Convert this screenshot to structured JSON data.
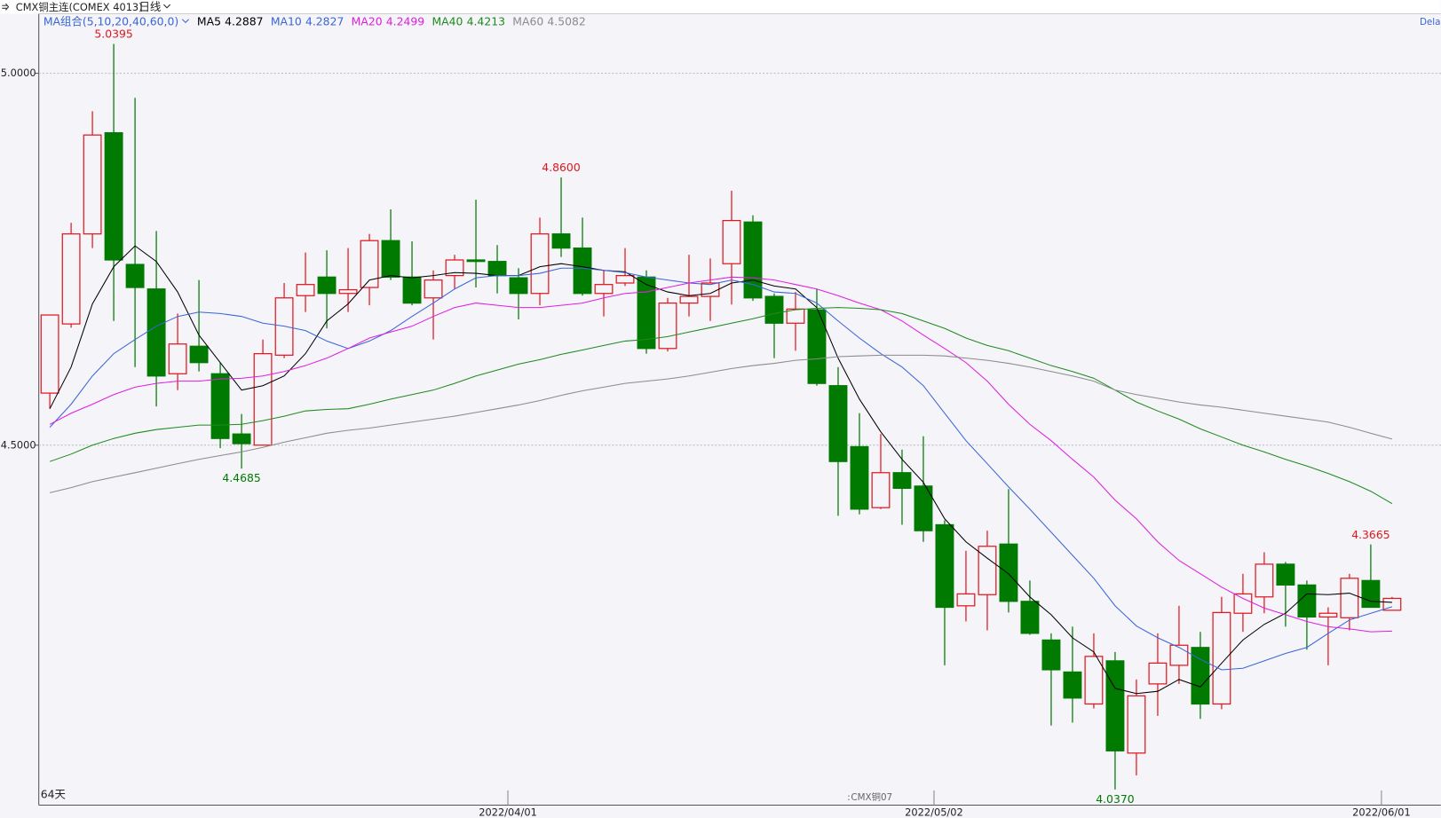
{
  "chart_data": {
    "type": "candlestick",
    "title": "CMX铜主连(COMEX 4013)",
    "period": "日线",
    "ma_group": "MA组合(5,10,20,40,60,0)",
    "day_count": "64天",
    "watermark": "CMX铜07",
    "corner_text": "Dela",
    "categories": [
      null,
      null,
      null,
      null,
      null,
      null,
      null,
      null,
      null,
      null,
      null,
      null,
      null,
      null,
      null,
      null,
      null,
      null,
      null,
      null,
      null,
      null,
      "2022/04/01",
      null,
      null,
      null,
      null,
      null,
      null,
      null,
      null,
      null,
      null,
      null,
      null,
      null,
      null,
      null,
      null,
      null,
      null,
      null,
      "2022/05/02",
      null,
      null,
      null,
      null,
      null,
      null,
      null,
      null,
      null,
      null,
      null,
      null,
      null,
      null,
      null,
      null,
      null,
      null,
      null,
      null,
      "2022/06/01"
    ],
    "open": [
      4.57,
      4.663,
      4.784,
      4.92,
      4.743,
      4.71,
      4.596,
      4.633,
      4.596,
      4.515,
      4.5,
      4.621,
      4.701,
      4.726,
      4.704,
      4.712,
      4.775,
      4.726,
      4.698,
      4.728,
      4.749,
      4.747,
      4.725,
      4.704,
      4.784,
      4.765,
      4.704,
      4.718,
      4.726,
      4.63,
      4.691,
      4.7,
      4.744,
      4.8,
      4.7,
      4.664,
      4.682,
      4.58,
      4.498,
      4.416,
      4.463,
      4.445,
      4.393,
      4.284,
      4.299,
      4.367,
      4.29,
      4.238,
      4.195,
      4.152,
      4.21,
      4.086,
      4.179,
      4.204,
      4.228,
      4.152,
      4.274,
      4.296,
      4.34,
      4.312,
      4.269,
      4.268,
      4.318,
      4.278
    ],
    "high": [
      4.675,
      4.799,
      4.949,
      5.0395,
      4.967,
      4.788,
      4.677,
      4.722,
      4.611,
      4.542,
      4.642,
      4.718,
      4.759,
      4.762,
      4.765,
      4.784,
      4.817,
      4.774,
      4.735,
      4.756,
      4.83,
      4.769,
      4.738,
      4.806,
      4.86,
      4.806,
      4.735,
      4.765,
      4.735,
      4.698,
      4.756,
      4.751,
      4.842,
      4.809,
      4.704,
      4.706,
      4.71,
      4.605,
      4.543,
      4.515,
      4.494,
      4.512,
      4.399,
      4.358,
      4.385,
      4.441,
      4.318,
      4.247,
      4.256,
      4.247,
      4.222,
      4.185,
      4.247,
      4.284,
      4.249,
      4.296,
      4.327,
      4.356,
      4.343,
      4.318,
      4.282,
      4.327,
      4.3665,
      4.296
    ],
    "low": [
      4.549,
      4.658,
      4.765,
      4.667,
      4.605,
      4.552,
      4.574,
      4.599,
      4.496,
      4.4685,
      4.5,
      4.617,
      4.679,
      4.657,
      4.679,
      4.688,
      4.722,
      4.688,
      4.642,
      4.71,
      4.712,
      4.704,
      4.669,
      4.688,
      4.753,
      4.701,
      4.673,
      4.714,
      4.623,
      4.626,
      4.673,
      4.667,
      4.689,
      4.694,
      4.617,
      4.627,
      4.58,
      4.405,
      4.407,
      4.414,
      4.393,
      4.37,
      4.204,
      4.263,
      4.251,
      4.275,
      4.245,
      4.123,
      4.127,
      4.146,
      4.037,
      4.056,
      4.136,
      4.179,
      4.132,
      4.145,
      4.249,
      4.274,
      4.256,
      4.225,
      4.204,
      4.251,
      4.282,
      4.278
    ],
    "close": [
      4.675,
      4.784,
      4.917,
      4.749,
      4.712,
      4.593,
      4.636,
      4.611,
      4.509,
      4.502,
      4.623,
      4.698,
      4.716,
      4.704,
      4.709,
      4.775,
      4.726,
      4.691,
      4.722,
      4.749,
      4.747,
      4.728,
      4.704,
      4.784,
      4.765,
      4.704,
      4.716,
      4.728,
      4.63,
      4.691,
      4.7,
      4.718,
      4.802,
      4.698,
      4.664,
      4.683,
      4.583,
      4.478,
      4.414,
      4.463,
      4.442,
      4.385,
      4.282,
      4.3,
      4.364,
      4.29,
      4.247,
      4.198,
      4.16,
      4.216,
      4.089,
      4.163,
      4.207,
      4.231,
      4.152,
      4.275,
      4.3,
      4.34,
      4.312,
      4.269,
      4.274,
      4.321,
      4.282,
      4.294
    ],
    "up_color": "#e3161e",
    "down_color": "#007a00",
    "series": [
      {
        "name": "MA5",
        "color": "#000000",
        "values": [
          4.549,
          4.605,
          4.69,
          4.74,
          4.768,
          4.747,
          4.706,
          4.648,
          4.611,
          4.574,
          4.58,
          4.593,
          4.623,
          4.667,
          4.69,
          4.722,
          4.728,
          4.725,
          4.728,
          4.732,
          4.731,
          4.728,
          4.728,
          4.74,
          4.744,
          4.74,
          4.735,
          4.733,
          4.716,
          4.706,
          4.701,
          4.704,
          4.718,
          4.722,
          4.714,
          4.71,
          4.685,
          4.617,
          4.562,
          4.518,
          4.481,
          4.45,
          4.401,
          4.37,
          4.348,
          4.327,
          4.296,
          4.272,
          4.241,
          4.222,
          4.173,
          4.166,
          4.169,
          4.185,
          4.175,
          4.207,
          4.238,
          4.259,
          4.274,
          4.3,
          4.299,
          4.301,
          4.29,
          4.2887
        ]
      },
      {
        "name": "MA10",
        "color": "#3a66d6",
        "values": [
          4.524,
          4.555,
          4.593,
          4.623,
          4.642,
          4.66,
          4.673,
          4.679,
          4.677,
          4.673,
          4.664,
          4.66,
          4.654,
          4.64,
          4.63,
          4.64,
          4.654,
          4.673,
          4.691,
          4.71,
          4.725,
          4.728,
          4.728,
          4.731,
          4.738,
          4.738,
          4.735,
          4.732,
          4.726,
          4.722,
          4.718,
          4.716,
          4.722,
          4.716,
          4.706,
          4.704,
          4.691,
          4.667,
          4.644,
          4.623,
          4.605,
          4.58,
          4.543,
          4.506,
          4.475,
          4.444,
          4.414,
          4.383,
          4.352,
          4.321,
          4.284,
          4.257,
          4.241,
          4.228,
          4.212,
          4.198,
          4.2,
          4.21,
          4.22,
          4.228,
          4.247,
          4.265,
          4.274,
          4.2827
        ]
      },
      {
        "name": "MA20",
        "color": "#e01ee0",
        "values": [
          4.528,
          4.543,
          4.555,
          4.568,
          4.578,
          4.583,
          4.586,
          4.586,
          4.589,
          4.59,
          4.593,
          4.599,
          4.607,
          4.617,
          4.63,
          4.644,
          4.652,
          4.66,
          4.673,
          4.685,
          4.691,
          4.688,
          4.685,
          4.685,
          4.688,
          4.691,
          4.698,
          4.704,
          4.706,
          4.712,
          4.718,
          4.722,
          4.726,
          4.725,
          4.722,
          4.716,
          4.71,
          4.701,
          4.691,
          4.682,
          4.667,
          4.648,
          4.63,
          4.611,
          4.586,
          4.555,
          4.528,
          4.506,
          4.481,
          4.457,
          4.426,
          4.401,
          4.37,
          4.345,
          4.327,
          4.309,
          4.294,
          4.281,
          4.272,
          4.263,
          4.256,
          4.253,
          4.249,
          4.2499
        ]
      },
      {
        "name": "MA40",
        "color": "#1f8a1f",
        "values": [
          4.478,
          4.488,
          4.5,
          4.509,
          4.516,
          4.521,
          4.524,
          4.527,
          4.527,
          4.528,
          4.533,
          4.539,
          4.546,
          4.548,
          4.549,
          4.555,
          4.562,
          4.568,
          4.574,
          4.583,
          4.593,
          4.601,
          4.609,
          4.615,
          4.622,
          4.628,
          4.634,
          4.64,
          4.642,
          4.646,
          4.652,
          4.658,
          4.664,
          4.67,
          4.677,
          4.682,
          4.684,
          4.685,
          4.684,
          4.682,
          4.677,
          4.667,
          4.657,
          4.644,
          4.634,
          4.627,
          4.617,
          4.607,
          4.599,
          4.59,
          4.574,
          4.558,
          4.546,
          4.535,
          4.522,
          4.511,
          4.5,
          4.491,
          4.481,
          4.472,
          4.462,
          4.451,
          4.438,
          4.4213
        ]
      },
      {
        "name": "MA60",
        "color": "#8c8c8c",
        "values": [
          4.436,
          4.443,
          4.451,
          4.457,
          4.463,
          4.469,
          4.475,
          4.481,
          4.486,
          4.491,
          4.497,
          4.504,
          4.51,
          4.516,
          4.52,
          4.523,
          4.527,
          4.531,
          4.535,
          4.539,
          4.544,
          4.549,
          4.554,
          4.56,
          4.567,
          4.573,
          4.578,
          4.583,
          4.586,
          4.589,
          4.593,
          4.598,
          4.603,
          4.607,
          4.61,
          4.614,
          4.616,
          4.619,
          4.62,
          4.621,
          4.621,
          4.621,
          4.62,
          4.617,
          4.614,
          4.61,
          4.605,
          4.599,
          4.593,
          4.586,
          4.574,
          4.568,
          4.563,
          4.558,
          4.554,
          4.551,
          4.547,
          4.543,
          4.539,
          4.535,
          4.531,
          4.524,
          4.516,
          4.5082
        ]
      }
    ],
    "annotations": [
      {
        "index": 3,
        "value": 5.0395
      },
      {
        "index": 24,
        "value": 4.86,
        "label": "4.8600"
      },
      {
        "index": 9,
        "value": 4.4685
      },
      {
        "index": 50,
        "value": 4.037,
        "label": "4.0370"
      },
      {
        "index": 62,
        "value": 4.3665
      }
    ],
    "ylim": [
      4.016,
      5.08
    ],
    "yticks": [
      {
        "value": 4.5,
        "label": "4.5000"
      },
      {
        "value": 5,
        "label": "5.0000"
      }
    ],
    "grid": true
  }
}
